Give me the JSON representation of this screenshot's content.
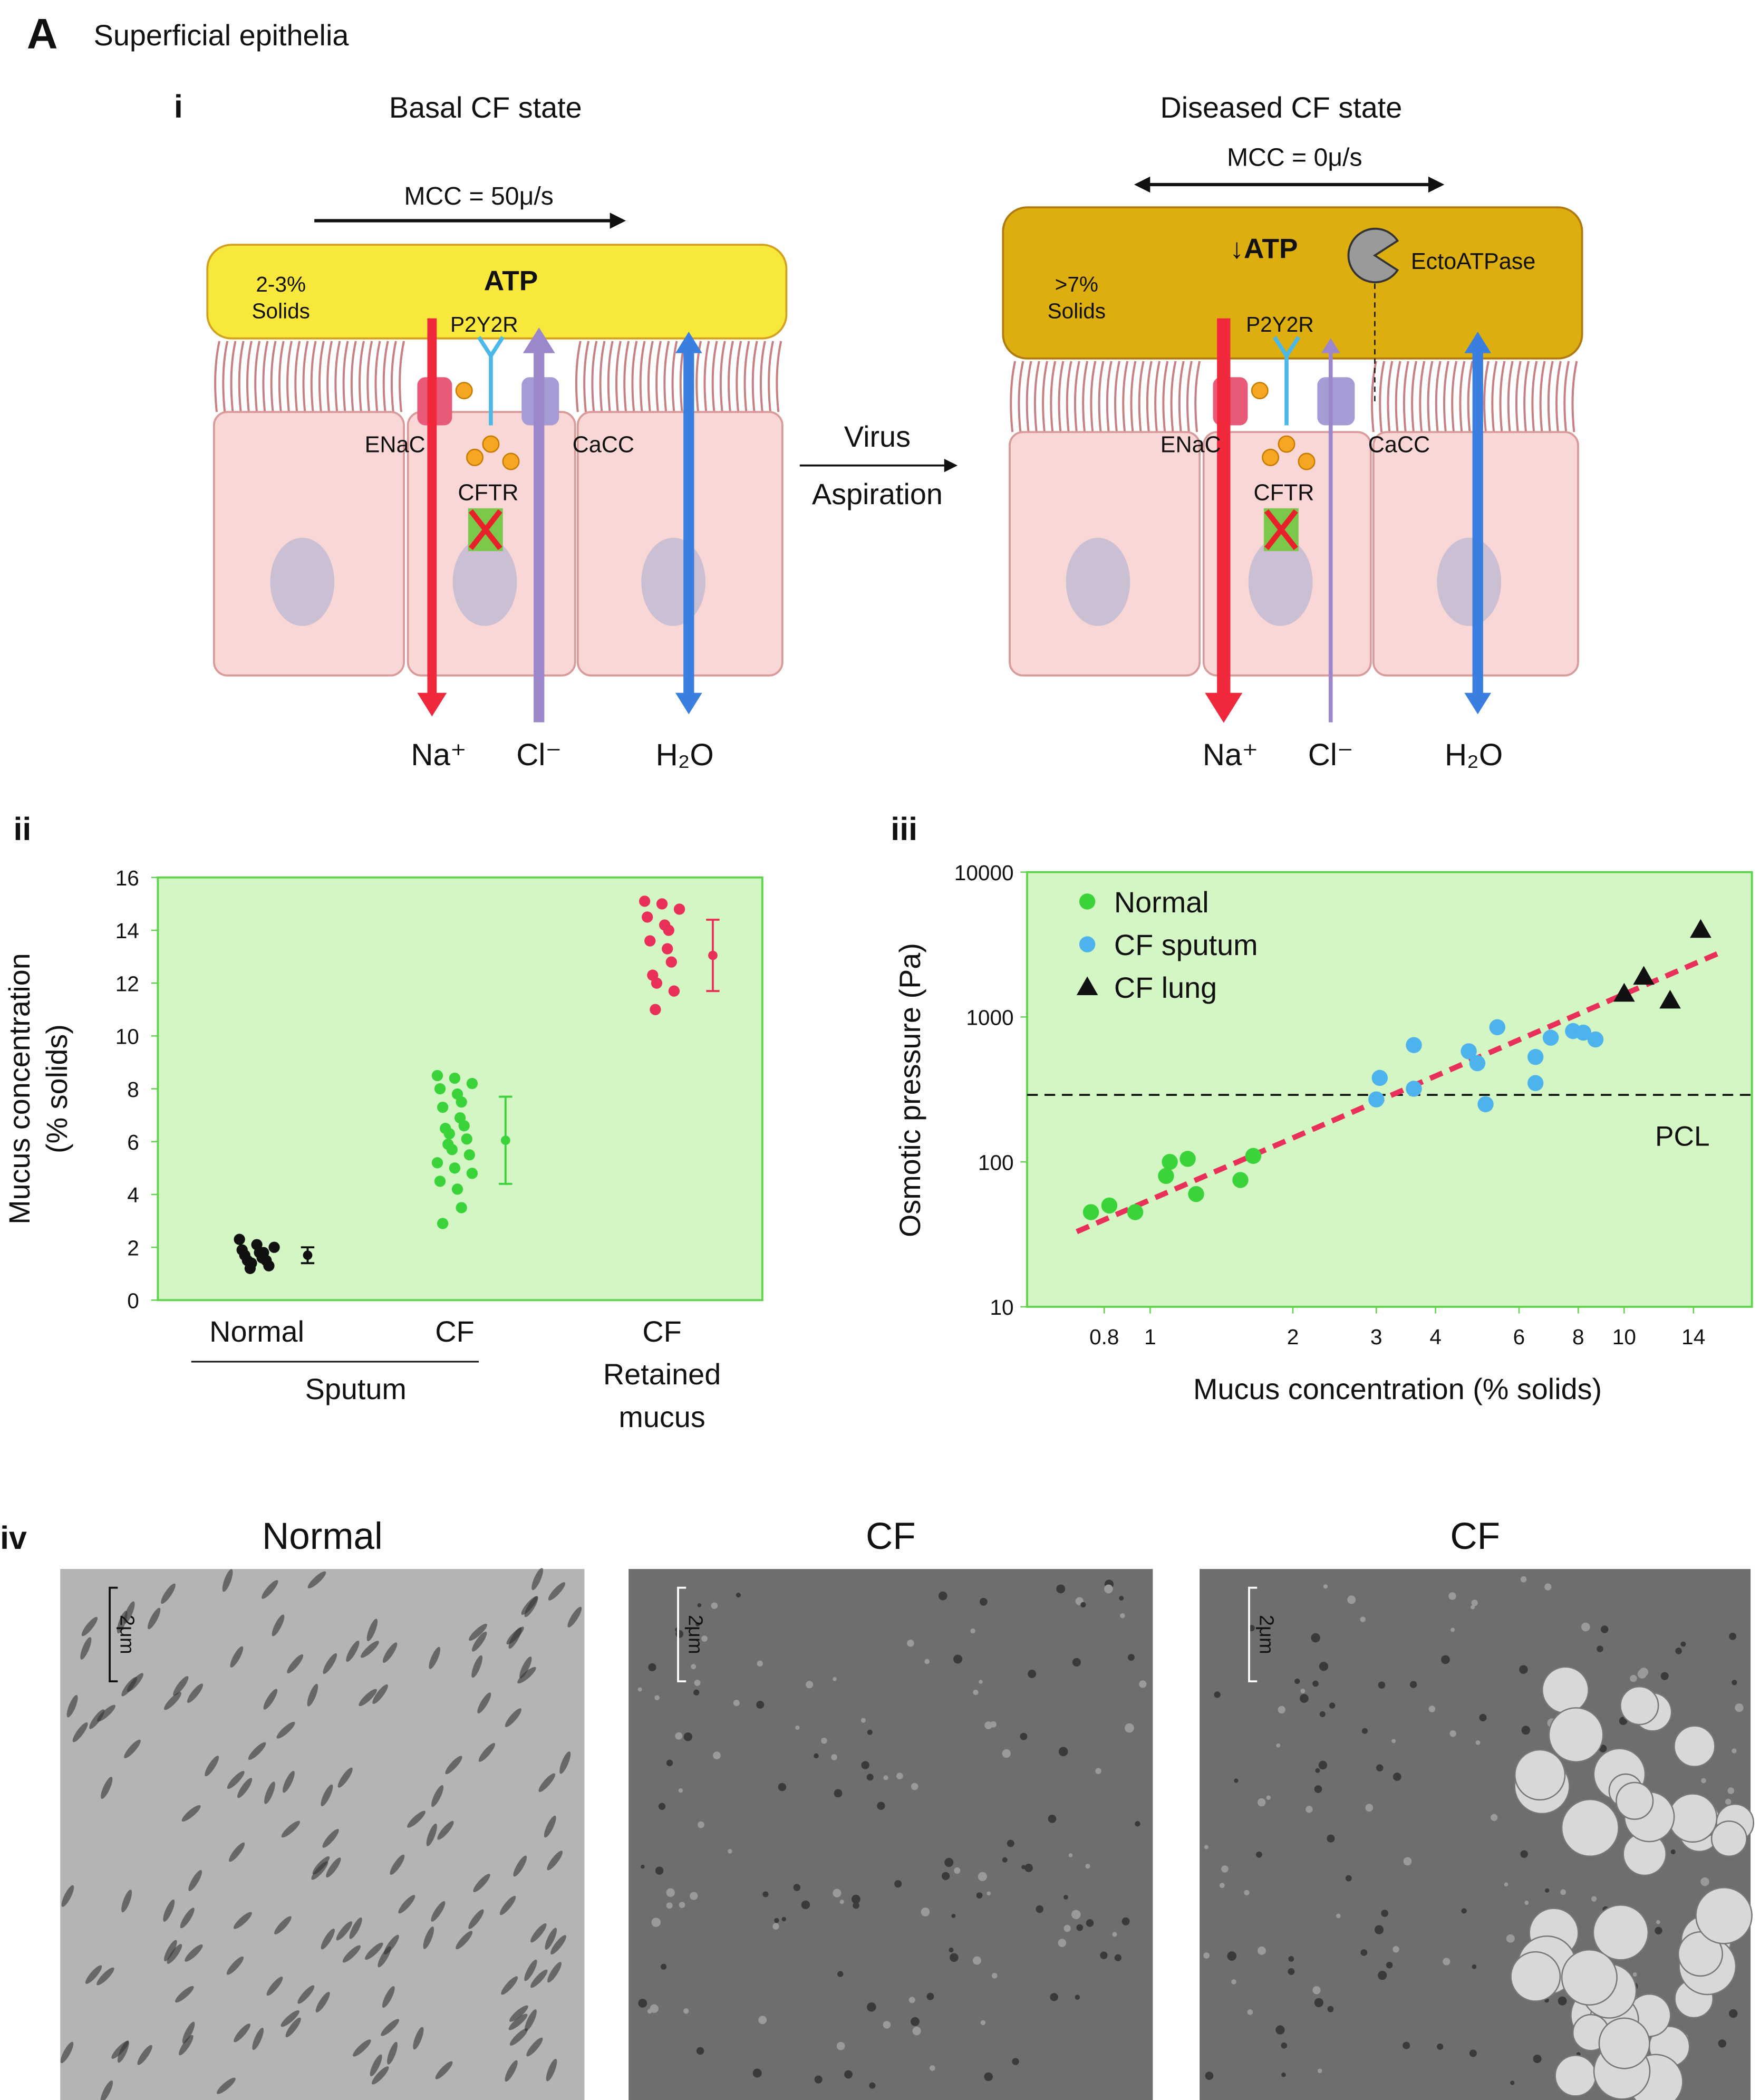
{
  "panel_label": "A",
  "panel_title": "Superficial epithelia",
  "diagram": {
    "label": "i",
    "basal": {
      "title": "Basal CF state",
      "mcc": "MCC = 50μ/s",
      "solids": [
        "2-3%",
        "Solids"
      ],
      "atp": "ATP",
      "receptor": "P2Y2R",
      "enac": "ENaC",
      "cacc": "CaCC",
      "cftr": "CFTR",
      "na": "Na⁺",
      "cl": "Cl⁻",
      "h2o": "H₂O"
    },
    "transition": [
      "Virus",
      "Aspiration"
    ],
    "diseased": {
      "title": "Diseased CF state",
      "mcc": "MCC = 0μ/s",
      "solids": [
        ">7%",
        "Solids"
      ],
      "atp": "↓ATP",
      "enzyme": "EctoATPase",
      "receptor": "P2Y2R",
      "enac": "ENaC",
      "cacc": "CaCC",
      "cftr": "CFTR",
      "na": "Na⁺",
      "cl": "Cl⁻",
      "h2o": "H₂O"
    }
  },
  "chart_data": [
    {
      "type": "strip",
      "label": "ii",
      "ylabel": [
        "Mucus concentration",
        "(% solids)"
      ],
      "categories": [
        "Normal",
        "CF",
        "CF Retained mucus"
      ],
      "group_label": "Sputum",
      "colors": [
        "#111111",
        "#3ad43a",
        "#e8305a"
      ],
      "values": [
        [
          2.3,
          2.1,
          2.0,
          1.9,
          1.8,
          1.8,
          1.7,
          1.6,
          1.5,
          1.5,
          1.4,
          1.3,
          1.2
        ],
        [
          8.5,
          8.4,
          8.2,
          8.0,
          7.8,
          7.5,
          7.3,
          6.9,
          6.6,
          6.5,
          6.3,
          6.1,
          5.9,
          5.7,
          5.5,
          5.2,
          5.0,
          4.8,
          4.5,
          4.2,
          3.5,
          2.9
        ],
        [
          15.1,
          15.0,
          14.8,
          14.5,
          14.2,
          14.0,
          13.6,
          13.3,
          12.8,
          12.3,
          12.0,
          11.7,
          11.0
        ]
      ],
      "means": [
        1.7,
        6.05,
        13.05
      ],
      "errors": [
        0.3,
        1.65,
        1.35
      ],
      "ylim": [
        0,
        16
      ],
      "yticks": [
        0,
        2,
        4,
        6,
        8,
        10,
        12,
        14,
        16
      ],
      "background": "#d4f5c4"
    },
    {
      "type": "scatter",
      "label": "iii",
      "xlabel": "Mucus concentration (% solids)",
      "ylabel": "Osmotic pressure (Pa)",
      "xscale": "log",
      "yscale": "log",
      "xlim": [
        0.55,
        18.6
      ],
      "ylim": [
        10,
        10000
      ],
      "xticks": [
        0.8,
        1,
        2,
        3,
        4,
        6,
        8,
        10,
        14
      ],
      "yticks": [
        10,
        100,
        1000,
        10000
      ],
      "legend": "upper left",
      "background": "#d4f5c4",
      "series": [
        {
          "name": "Normal",
          "color": "#3ad43a",
          "marker": "circle",
          "x": [
            0.75,
            0.82,
            0.93,
            1.08,
            1.1,
            1.2,
            1.25,
            1.55,
            1.65
          ],
          "y": [
            45,
            50,
            45,
            80,
            100,
            105,
            60,
            75,
            110
          ]
        },
        {
          "name": "CF sputum",
          "color": "#4db3ec",
          "marker": "circle",
          "x": [
            3.0,
            3.05,
            3.6,
            3.6,
            4.7,
            4.9,
            5.1,
            5.4,
            6.5,
            6.5,
            7.0,
            7.8,
            8.2,
            8.7
          ],
          "y": [
            270,
            380,
            320,
            640,
            580,
            480,
            250,
            850,
            350,
            530,
            720,
            800,
            780,
            700
          ]
        },
        {
          "name": "CF lung",
          "color": "#111111",
          "marker": "triangle",
          "x": [
            10,
            11,
            12.5,
            14.5
          ],
          "y": [
            1450,
            1900,
            1300,
            4000
          ]
        }
      ],
      "fit_line": {
        "color": "#e8305a",
        "x": [
          0.7,
          16
        ],
        "y": [
          33,
          2800
        ]
      },
      "reference_line": {
        "label": "PCL",
        "y": 290
      }
    }
  ],
  "micrographs": {
    "label": "iv",
    "titles": [
      "Normal",
      "CF",
      "CF"
    ],
    "scale_label": "2μm"
  }
}
